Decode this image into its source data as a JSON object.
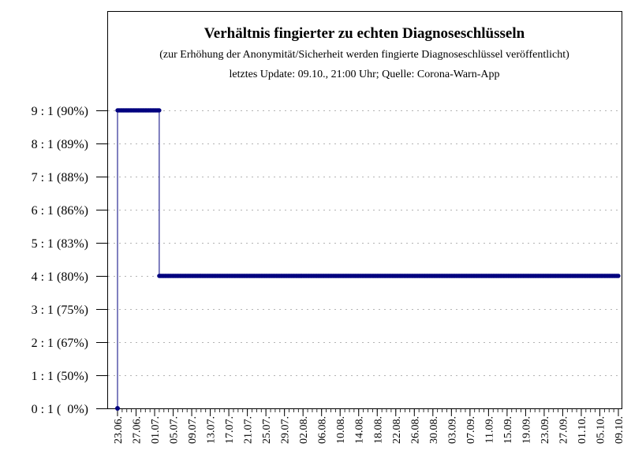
{
  "chart_data": {
    "type": "line",
    "title": "Verhältnis fingierter zu echten Diagnoseschlüsseln",
    "subtitle": "(zur Erhöhung der Anonymität/Sicherheit werden fingierte Diagnoseschlüssel veröffentlicht)",
    "source_line": "letztes Update: 09.10., 21:00 Uhr; Quelle: Corona-Warn-App",
    "y_tick_labels": [
      "0 : 1 (  0%)",
      "1 : 1 (50%)",
      "2 : 1 (67%)",
      "3 : 1 (75%)",
      "4 : 1 (80%)",
      "5 : 1 (83%)",
      "6 : 1 (86%)",
      "7 : 1 (88%)",
      "8 : 1 (89%)",
      "9 : 1 (90%)"
    ],
    "ylim": [
      0,
      9
    ],
    "x_tick_labels": [
      "23.06.",
      "27.06.",
      "01.07.",
      "05.07.",
      "09.07.",
      "13.07.",
      "17.07.",
      "21.07.",
      "25.07.",
      "29.07.",
      "02.08.",
      "06.08.",
      "10.08.",
      "14.08.",
      "18.08.",
      "22.08.",
      "26.08.",
      "30.08.",
      "03.09.",
      "07.09.",
      "11.09.",
      "15.09.",
      "19.09.",
      "23.09.",
      "27.09.",
      "01.10.",
      "05.10.",
      "09.10."
    ],
    "grid": "horizontal dotted",
    "series_color": "#00007f",
    "series": [
      {
        "points": [
          {
            "x": "23.06.",
            "y": 0
          },
          {
            "x": "23.06.",
            "y": 9
          },
          {
            "x": "02.07.",
            "y": 9
          },
          {
            "x": "02.07.",
            "y": 4
          },
          {
            "x": "09.10.",
            "y": 4
          }
        ]
      }
    ]
  }
}
